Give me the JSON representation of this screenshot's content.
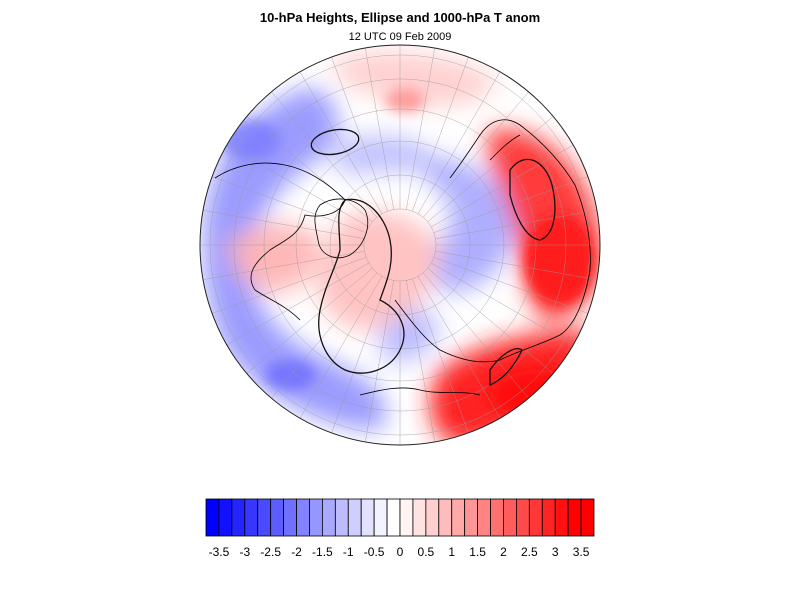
{
  "header": {
    "title": "10-hPa Heights, Ellipse and 1000-hPa T anom",
    "subtitle": "12 UTC 09 Feb 2009"
  },
  "map": {
    "projection": "north-polar-orthographic",
    "field": "1000-hPa T anom",
    "anomaly_regions": [
      {
        "name": "alaska-pacific",
        "sign": "negative",
        "strength": 0.55
      },
      {
        "name": "north-atlantic",
        "sign": "negative",
        "strength": 0.45
      },
      {
        "name": "siberia",
        "sign": "positive",
        "strength": 0.9
      },
      {
        "name": "europe",
        "sign": "positive",
        "strength": 0.95
      },
      {
        "name": "greenland",
        "sign": "positive",
        "strength": 0.35
      },
      {
        "name": "arctic-ocean",
        "sign": "positive",
        "strength": 0.3
      }
    ]
  },
  "colorbar": {
    "bins": [
      -3.75,
      -3.5,
      -3.25,
      -3,
      -2.75,
      -2.5,
      -2.25,
      -2,
      -1.75,
      -1.5,
      -1.25,
      -1,
      -0.75,
      -0.5,
      -0.25,
      0,
      0.25,
      0.5,
      0.75,
      1,
      1.25,
      1.5,
      1.75,
      2,
      2.25,
      2.5,
      2.75,
      3,
      3.25,
      3.5,
      3.75
    ],
    "labels": [
      "-3.5",
      "-3",
      "-2.5",
      "-2",
      "-1.5",
      "-1",
      "-0.5",
      "0",
      "0.5",
      "1",
      "1.5",
      "2",
      "2.5",
      "3",
      "3.5"
    ],
    "colors": [
      "#0000ff",
      "#1111ff",
      "#2424ff",
      "#3737ff",
      "#4a4aff",
      "#5d5dff",
      "#7070ff",
      "#8383ff",
      "#9696ff",
      "#a9a9ff",
      "#bcbcff",
      "#cfcfff",
      "#e2e2ff",
      "#f3f3ff",
      "#ffffff",
      "#fff3f3",
      "#ffe2e2",
      "#ffcfcf",
      "#ffbcbc",
      "#ffa9a9",
      "#ff9696",
      "#ff8383",
      "#ff7070",
      "#ff5d5d",
      "#ff4a4a",
      "#ff3737",
      "#ff2424",
      "#ff1111",
      "#ff0000",
      "#ff0000"
    ]
  }
}
